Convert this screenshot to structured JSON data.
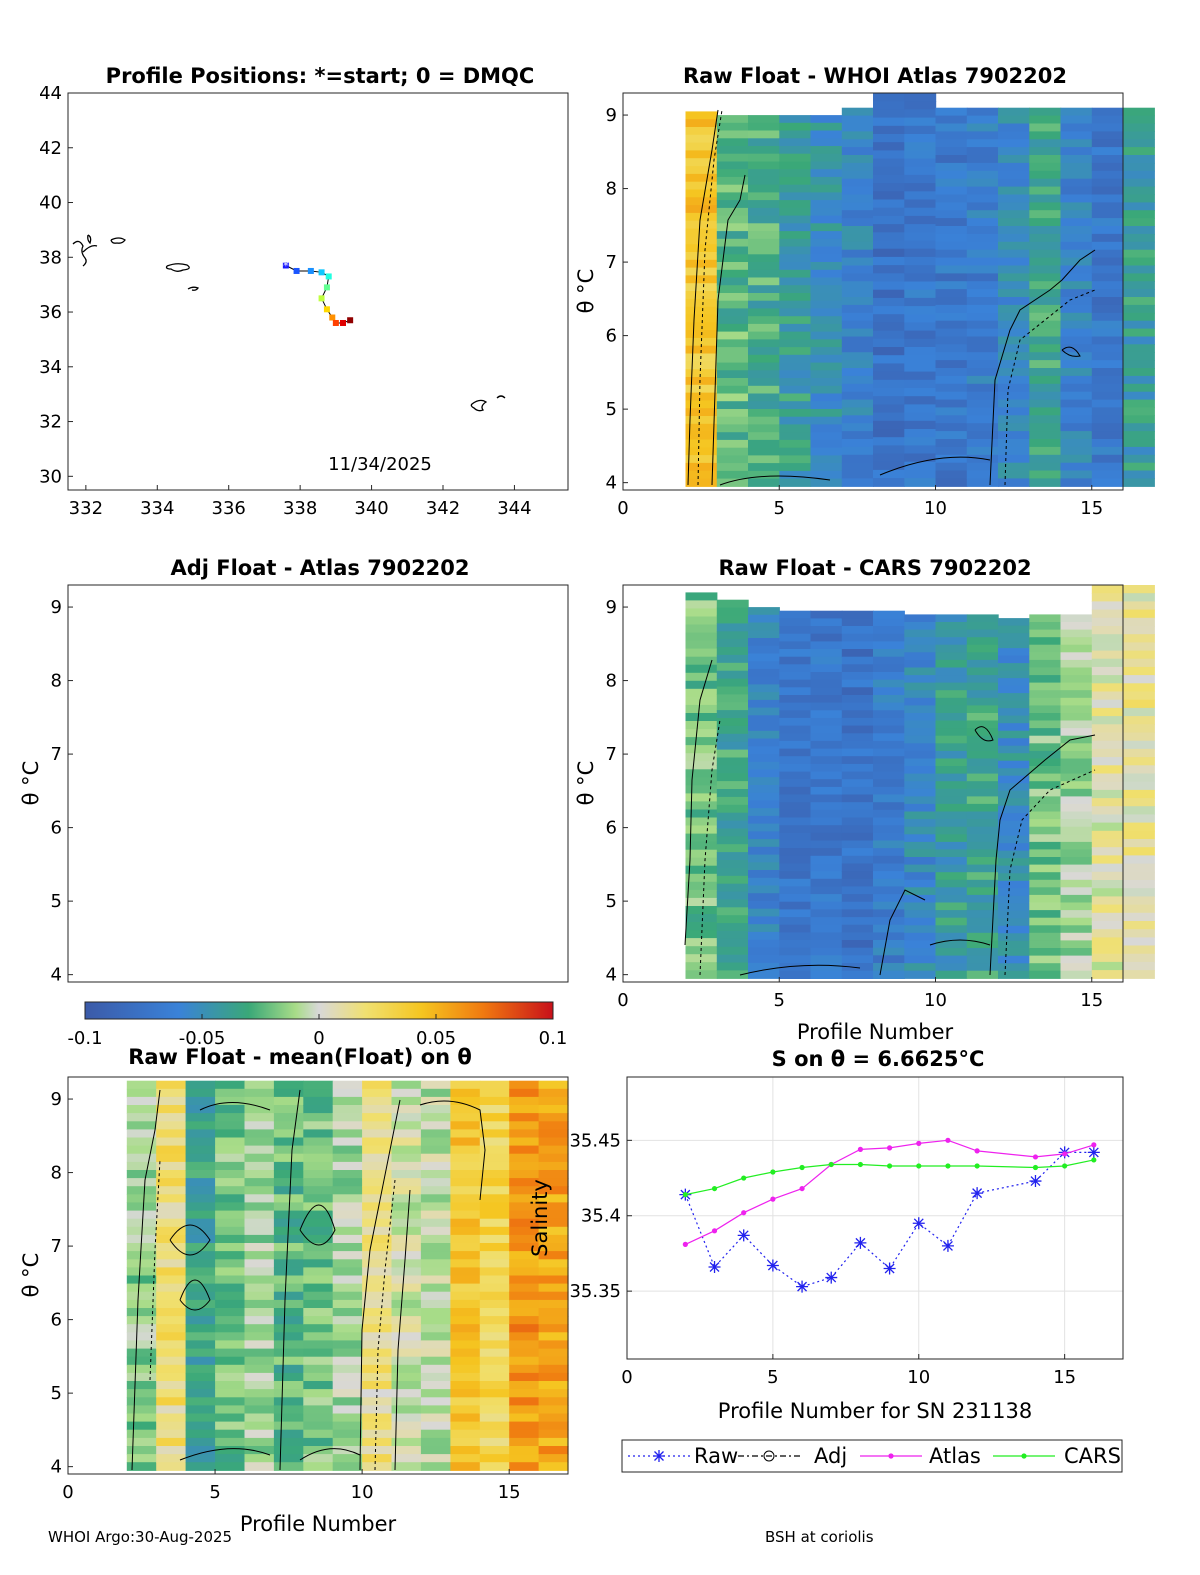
{
  "footer": {
    "left": "WHOI Argo:30-Aug-2025",
    "right": "BSH at coriolis"
  },
  "colors": {
    "raw": "#2222ee",
    "adj": "#000000",
    "atlas": "#ee22ee",
    "cars": "#22ee22"
  },
  "colorbar": {
    "min": -0.1,
    "max": 0.1,
    "ticks": [
      "-0.1",
      "-0.05",
      "0",
      "0.05",
      "0.1"
    ]
  },
  "theta_label": "θ °C",
  "profile_label": "Profile Number",
  "panels": {
    "map": {
      "title": "Profile Positions: *=start; 0 = DMQC",
      "date_label": "11/34/2025",
      "x_ticks": [
        "332",
        "334",
        "336",
        "338",
        "340",
        "342",
        "344"
      ],
      "y_ticks": [
        "30",
        "32",
        "34",
        "36",
        "38",
        "40",
        "42",
        "44"
      ],
      "xlim": [
        331.5,
        345.5
      ],
      "ylim": [
        29.5,
        44
      ],
      "track": [
        [
          337.6,
          37.7
        ],
        [
          337.9,
          37.5
        ],
        [
          338.3,
          37.5
        ],
        [
          338.6,
          37.45
        ],
        [
          338.8,
          37.3
        ],
        [
          338.75,
          36.9
        ],
        [
          338.6,
          36.5
        ],
        [
          338.75,
          36.1
        ],
        [
          338.9,
          35.8
        ],
        [
          339.0,
          35.6
        ],
        [
          339.2,
          35.6
        ],
        [
          339.4,
          35.7
        ]
      ]
    },
    "whoi": {
      "title": "Raw Float - WHOI Atlas  7902202",
      "x_ticks": [
        "0",
        "5",
        "10",
        "15"
      ],
      "y_ticks": [
        "4",
        "5",
        "6",
        "7",
        "8",
        "9"
      ]
    },
    "adj": {
      "title": "Adj Float - Atlas  7902202",
      "y_ticks": [
        "4",
        "5",
        "6",
        "7",
        "8",
        "9"
      ]
    },
    "cars": {
      "title": "Raw Float - CARS  7902202",
      "x_ticks": [
        "0",
        "5",
        "10",
        "15"
      ],
      "y_ticks": [
        "4",
        "5",
        "6",
        "7",
        "8",
        "9"
      ]
    },
    "mean": {
      "title": "Raw Float - mean(Float) on θ",
      "x_ticks": [
        "0",
        "5",
        "10",
        "15"
      ],
      "y_ticks": [
        "4",
        "5",
        "6",
        "7",
        "8",
        "9"
      ]
    },
    "sal": {
      "title": "S on θ = 6.6625°C",
      "xlabel": "Profile Number for SN 231138",
      "ylabel": "Salinity",
      "x_ticks": [
        "0",
        "5",
        "10",
        "15"
      ],
      "y_ticks": [
        "35.35",
        "35.4",
        "35.45"
      ]
    }
  },
  "chart_data": [
    {
      "type": "line",
      "title": "S on θ = 6.6625°C",
      "xlabel": "Profile Number for SN 231138",
      "ylabel": "Salinity",
      "xlim": [
        0,
        17
      ],
      "ylim": [
        35.305,
        35.492
      ],
      "series": [
        {
          "name": "Raw",
          "x": [
            2,
            3,
            4,
            5,
            6,
            7,
            8,
            9,
            10,
            11,
            12,
            14,
            15,
            16
          ],
          "values": [
            35.414,
            35.366,
            35.387,
            35.367,
            35.353,
            35.359,
            35.382,
            35.365,
            35.395,
            35.38,
            35.415,
            35.423,
            35.442,
            35.442
          ]
        },
        {
          "name": "Adj",
          "x": [],
          "values": []
        },
        {
          "name": "Atlas",
          "x": [
            2,
            3,
            4,
            5,
            6,
            7,
            8,
            9,
            10,
            11,
            12,
            14,
            15,
            16
          ],
          "values": [
            35.381,
            35.39,
            35.402,
            35.411,
            35.418,
            35.434,
            35.444,
            35.445,
            35.448,
            35.45,
            35.443,
            35.439,
            35.441,
            35.447
          ]
        },
        {
          "name": "CARS",
          "x": [
            2,
            3,
            4,
            5,
            6,
            7,
            8,
            9,
            10,
            11,
            12,
            14,
            15,
            16
          ],
          "values": [
            35.414,
            35.418,
            35.425,
            35.429,
            35.432,
            35.434,
            35.434,
            35.433,
            35.433,
            35.433,
            35.433,
            35.432,
            35.433,
            35.437
          ]
        }
      ]
    },
    {
      "type": "heatmap",
      "title": "Raw Float - WHOI Atlas  7902202",
      "xlabel": "",
      "ylabel": "θ °C",
      "xlim": [
        0,
        16
      ],
      "ylim": [
        3.9,
        9.3
      ],
      "columns": [
        {
          "x": 2,
          "top": 9.05,
          "base": 0.04
        },
        {
          "x": 3,
          "top": 9.0,
          "base": -0.025
        },
        {
          "x": 4,
          "top": 9.0,
          "base": -0.03
        },
        {
          "x": 5,
          "top": 9.0,
          "base": -0.04
        },
        {
          "x": 6,
          "top": 9.0,
          "base": -0.05
        },
        {
          "x": 7,
          "top": 9.1,
          "base": -0.06
        },
        {
          "x": 8,
          "top": 9.3,
          "base": -0.075
        },
        {
          "x": 9,
          "top": 9.3,
          "base": -0.07
        },
        {
          "x": 10,
          "top": 9.1,
          "base": -0.07
        },
        {
          "x": 11,
          "top": 9.1,
          "base": -0.065
        },
        {
          "x": 12,
          "top": 9.1,
          "base": -0.055
        },
        {
          "x": 13,
          "top": 9.1,
          "base": -0.035
        },
        {
          "x": 14,
          "top": 9.1,
          "base": -0.06
        },
        {
          "x": 15,
          "top": 9.1,
          "base": -0.07
        },
        {
          "x": 16,
          "top": 9.1,
          "base": -0.04
        }
      ]
    },
    {
      "type": "heatmap",
      "title": "Raw Float - CARS  7902202",
      "xlabel": "Profile Number",
      "ylabel": "θ °C",
      "xlim": [
        0,
        16
      ],
      "ylim": [
        3.9,
        9.3
      ],
      "columns": [
        {
          "x": 2,
          "top": 9.2,
          "base": -0.02
        },
        {
          "x": 3,
          "top": 9.1,
          "base": -0.035
        },
        {
          "x": 4,
          "top": 9.0,
          "base": -0.06
        },
        {
          "x": 5,
          "top": 8.95,
          "base": -0.07
        },
        {
          "x": 6,
          "top": 8.95,
          "base": -0.07
        },
        {
          "x": 7,
          "top": 8.95,
          "base": -0.075
        },
        {
          "x": 8,
          "top": 8.95,
          "base": -0.065
        },
        {
          "x": 9,
          "top": 8.9,
          "base": -0.055
        },
        {
          "x": 10,
          "top": 8.9,
          "base": -0.04
        },
        {
          "x": 11,
          "top": 8.9,
          "base": -0.035
        },
        {
          "x": 12,
          "top": 8.85,
          "base": -0.05
        },
        {
          "x": 13,
          "top": 8.9,
          "base": -0.02
        },
        {
          "x": 14,
          "top": 8.9,
          "base": -0.01
        },
        {
          "x": 15,
          "top": 9.3,
          "base": 0.005
        },
        {
          "x": 16,
          "top": 9.3,
          "base": 0.01
        }
      ]
    },
    {
      "type": "heatmap",
      "title": "Raw Float - mean(Float) on θ",
      "xlabel": "Profile Number",
      "ylabel": "θ °C",
      "xlim": [
        0,
        17
      ],
      "ylim": [
        3.9,
        9.3
      ],
      "columns": [
        {
          "x": 2,
          "top": 9.25,
          "base": -0.015
        },
        {
          "x": 3,
          "top": 9.25,
          "base": 0.02
        },
        {
          "x": 4,
          "top": 9.25,
          "base": -0.035
        },
        {
          "x": 5,
          "top": 9.25,
          "base": -0.02
        },
        {
          "x": 6,
          "top": 9.25,
          "base": -0.01
        },
        {
          "x": 7,
          "top": 9.25,
          "base": -0.025
        },
        {
          "x": 8,
          "top": 9.25,
          "base": -0.02
        },
        {
          "x": 9,
          "top": 9.25,
          "base": -0.01
        },
        {
          "x": 10,
          "top": 9.25,
          "base": 0.015
        },
        {
          "x": 11,
          "top": 9.25,
          "base": 0.0
        },
        {
          "x": 12,
          "top": 9.25,
          "base": -0.005
        },
        {
          "x": 13,
          "top": 9.25,
          "base": 0.04
        },
        {
          "x": 14,
          "top": 9.25,
          "base": 0.03
        },
        {
          "x": 15,
          "top": 9.25,
          "base": 0.06
        },
        {
          "x": 16,
          "top": 9.25,
          "base": 0.055
        }
      ]
    }
  ]
}
